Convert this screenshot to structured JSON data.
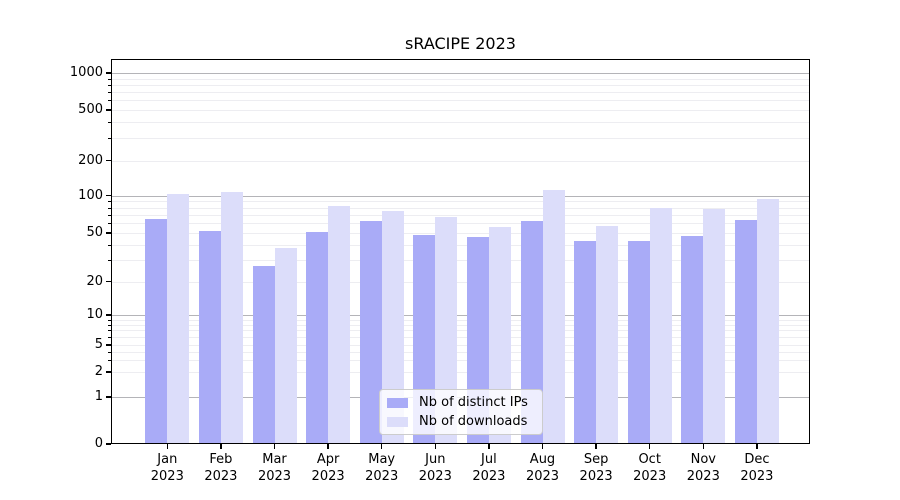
{
  "chart_data": {
    "type": "bar",
    "title": "sRACIPE 2023",
    "categories": [
      "Jan",
      "Feb",
      "Mar",
      "Apr",
      "May",
      "Jun",
      "Jul",
      "Aug",
      "Sep",
      "Oct",
      "Nov",
      "Dec"
    ],
    "category_year": "2023",
    "series": [
      {
        "name": "Nb of distinct IPs",
        "color": "#a9abf7",
        "values": [
          65,
          52,
          27,
          51,
          63,
          48,
          46,
          63,
          43,
          43,
          47,
          64
        ]
      },
      {
        "name": "Nb of downloads",
        "color": "#dcddfa",
        "values": [
          103,
          108,
          38,
          83,
          75,
          67,
          56,
          111,
          57,
          80,
          78,
          94
        ]
      }
    ],
    "xlabel": "",
    "ylabel": "",
    "y_ticks": [
      1000,
      500,
      200,
      100,
      50,
      20,
      10,
      5,
      2,
      1,
      0
    ],
    "ylim": [
      0,
      1000
    ],
    "y_scale": "log-like (symlog, linear near zero)",
    "grid": "horizontal, major decades darker + minor sub-decade lighter",
    "legend_position": "bottom-center inside plot"
  },
  "colors": {
    "background": "#ffffff",
    "axis": "#000000",
    "grid_major": "#b4b4b8",
    "grid_minor": "#ededf1",
    "legend_border": "#cccccc"
  }
}
